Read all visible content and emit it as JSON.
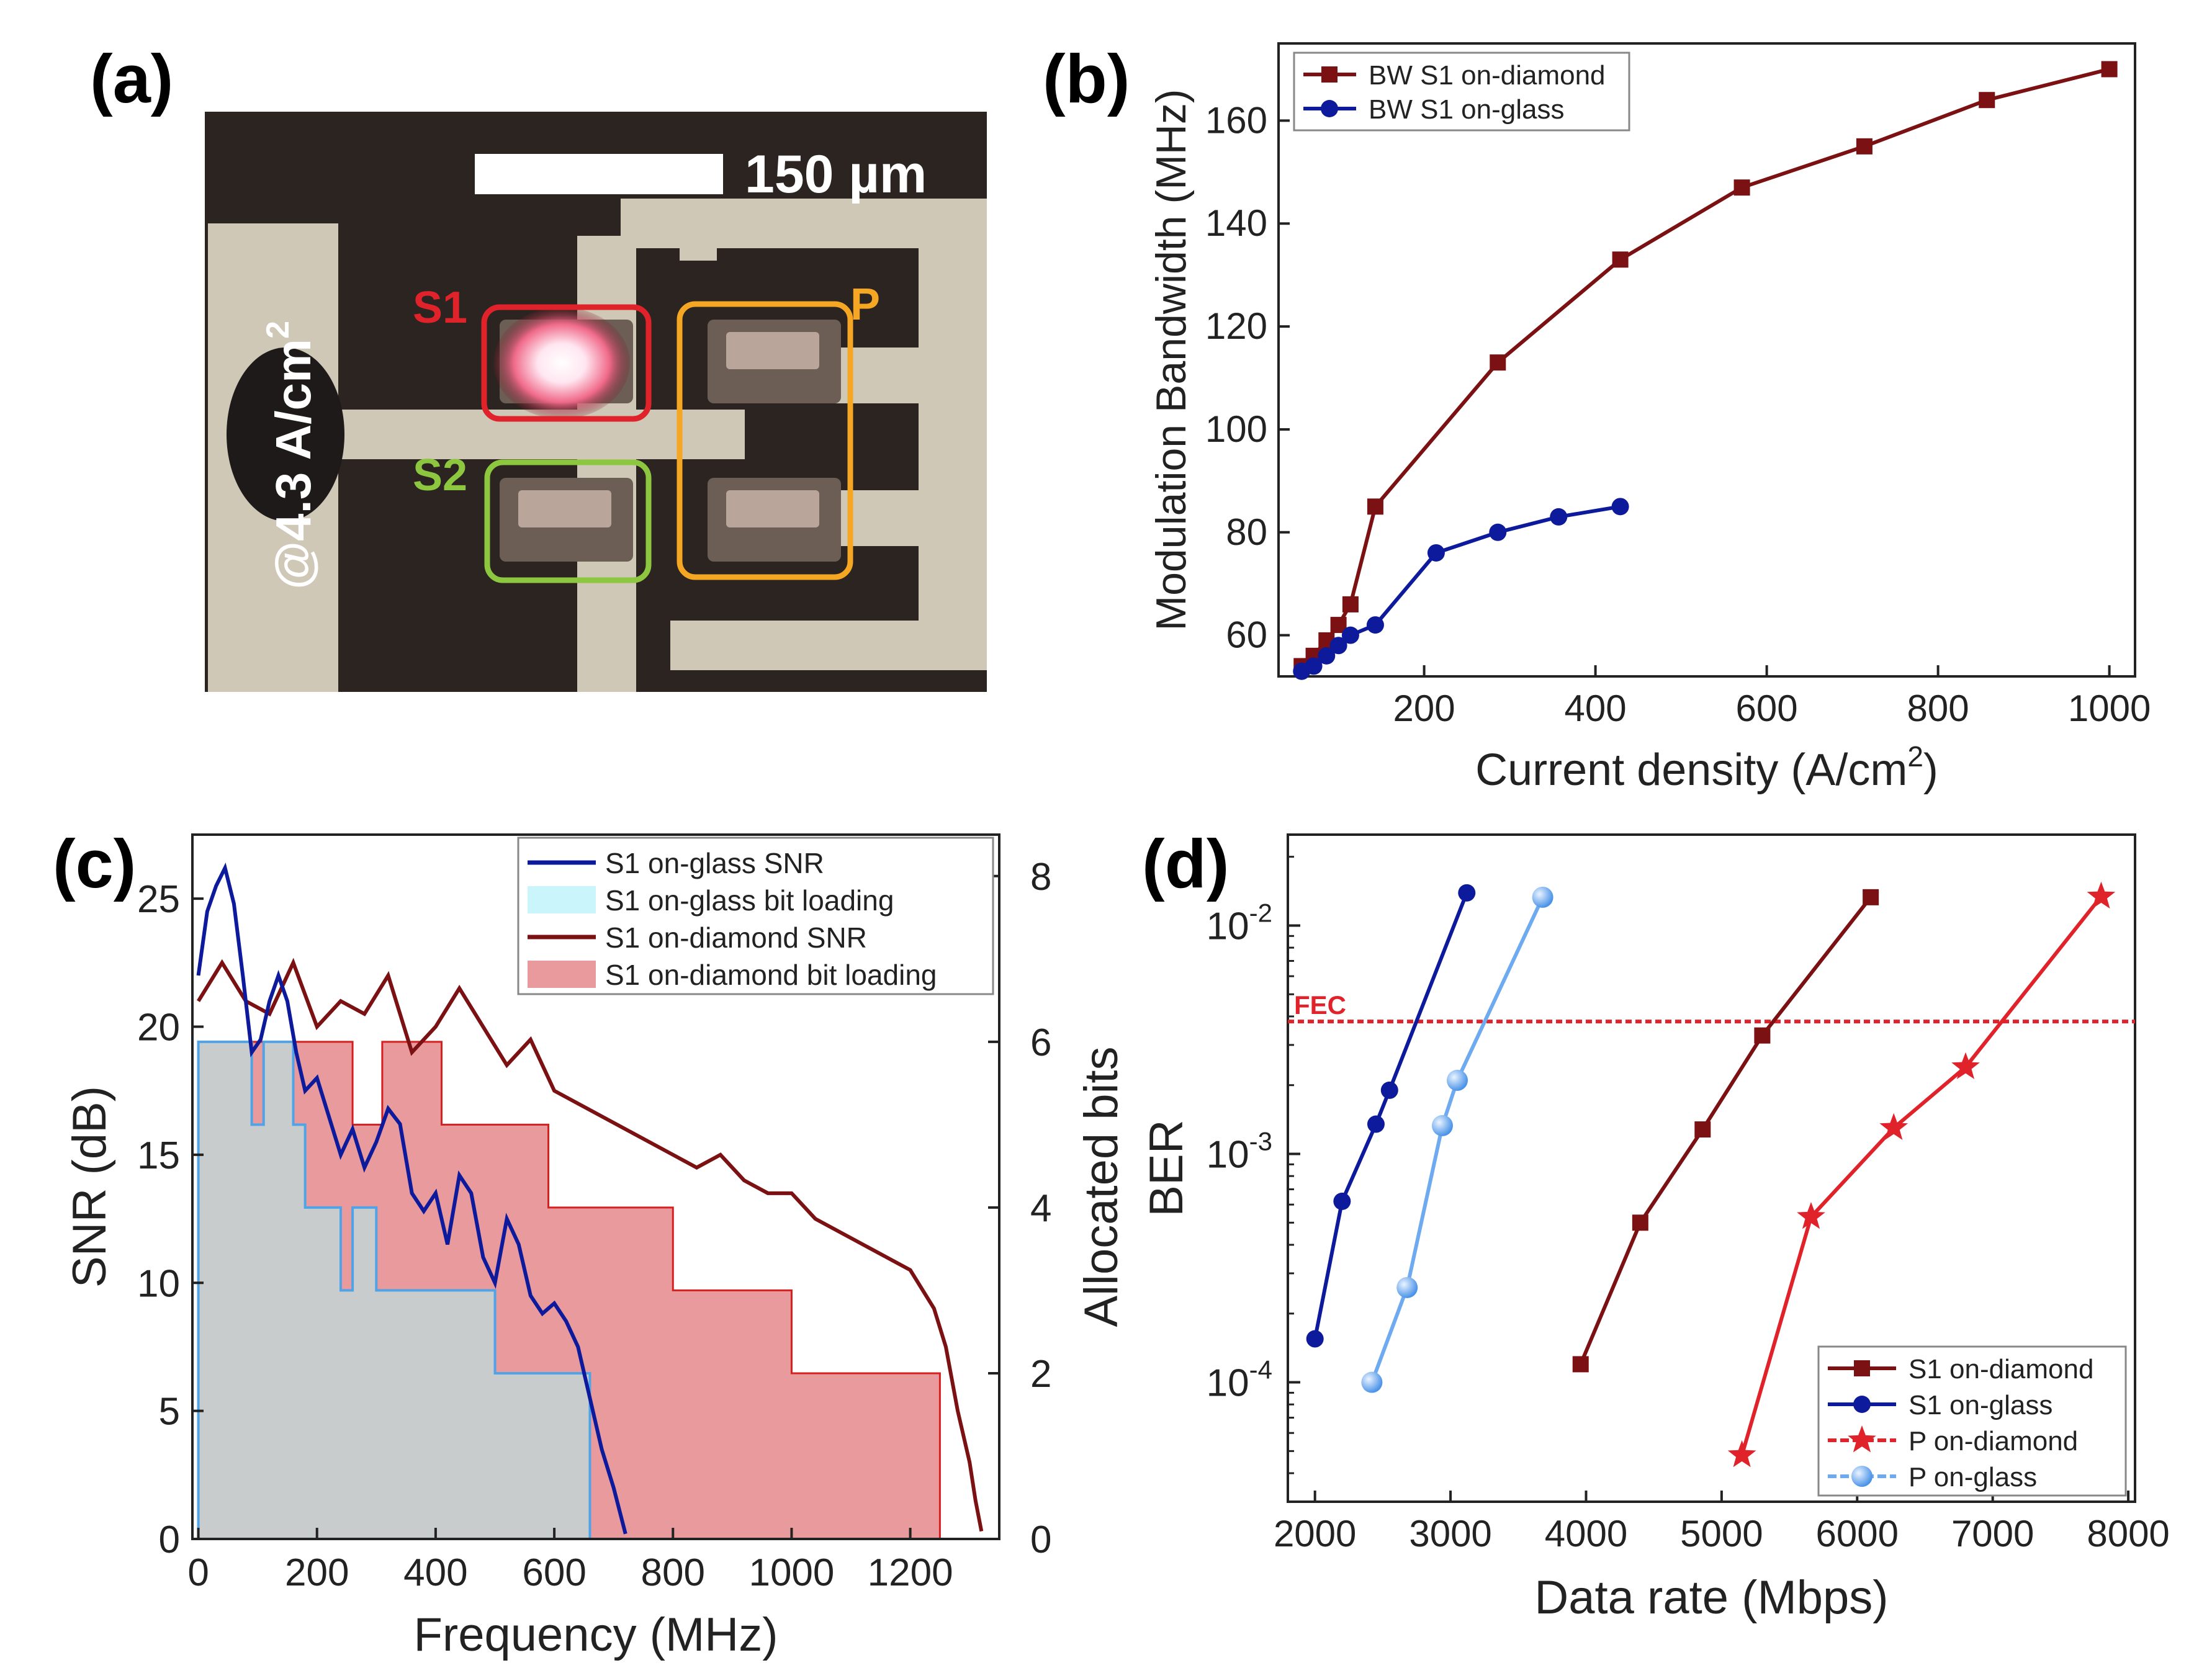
{
  "panels": {
    "a": {
      "label": "(a)"
    },
    "b": {
      "label": "(b)"
    },
    "c": {
      "label": "(c)"
    },
    "d": {
      "label": "(d)"
    }
  },
  "micrograph": {
    "scale_bar_label": "150 µm",
    "current_label_main": "@4.3 A/cm",
    "current_label_sup": "2",
    "boxes": [
      {
        "label": "S1",
        "color": "#e0232a"
      },
      {
        "label": "S2",
        "color": "#8dc63f"
      },
      {
        "label": "P",
        "color": "#f5a623"
      }
    ]
  },
  "chart_data": [
    {
      "panel": "b",
      "type": "line",
      "xlabel": "Current density (A/cm",
      "xlabel_sup": "2",
      "xlabel_end": ")",
      "ylabel": "Modulation Bandwidth (MHz)",
      "xlim": [
        30,
        1030
      ],
      "ylim": [
        52,
        175
      ],
      "xticks": [
        200,
        400,
        600,
        800,
        1000
      ],
      "yticks": [
        60,
        80,
        100,
        120,
        140,
        160
      ],
      "legend_position": "top-left",
      "series": [
        {
          "name": "BW S1 on-diamond",
          "color": "#7b1113",
          "marker": "square",
          "x": [
            57,
            71,
            86,
            100,
            114,
            143,
            286,
            429,
            571,
            714,
            857,
            1000
          ],
          "y": [
            54,
            56,
            59,
            62,
            66,
            85,
            113,
            133,
            147,
            155,
            164,
            170
          ]
        },
        {
          "name": "BW S1 on-glass",
          "color": "#0d1a9b",
          "marker": "circle",
          "x": [
            57,
            71,
            86,
            100,
            114,
            143,
            214,
            286,
            357,
            429
          ],
          "y": [
            53,
            54,
            56,
            58,
            60,
            62,
            76,
            80,
            83,
            85
          ]
        }
      ]
    },
    {
      "panel": "c",
      "type": "area",
      "xlabel": "Frequency (MHz)",
      "ylabel": "SNR (dB)",
      "ylabel_right": "Allocated bits",
      "xlim": [
        -10,
        1350
      ],
      "ylim": [
        0,
        27.5
      ],
      "ylim_right": [
        0,
        8.5
      ],
      "xticks": [
        0,
        200,
        400,
        600,
        800,
        1000,
        1200
      ],
      "yticks": [
        0,
        5,
        10,
        15,
        20,
        25
      ],
      "yticks_right": [
        0,
        2,
        4,
        6,
        8
      ],
      "legend_position": "top-right",
      "series": [
        {
          "name": "S1 on-glass SNR",
          "color": "#0d1a9b",
          "kind": "line",
          "x": [
            0,
            15,
            30,
            45,
            60,
            75,
            90,
            105,
            120,
            135,
            150,
            165,
            180,
            200,
            220,
            240,
            260,
            280,
            300,
            320,
            340,
            360,
            380,
            400,
            420,
            440,
            460,
            480,
            500,
            520,
            540,
            560,
            580,
            600,
            620,
            640,
            660,
            680,
            700,
            720
          ],
          "y": [
            22,
            24.5,
            25.5,
            26.2,
            24.8,
            22,
            19,
            19.5,
            21,
            22,
            21,
            19,
            17.5,
            18,
            16.5,
            15,
            16,
            14.5,
            15.5,
            16.8,
            16.2,
            13.5,
            12.8,
            13.5,
            11.5,
            14.2,
            13.5,
            11,
            10,
            12.5,
            11.5,
            9.5,
            8.8,
            9.2,
            8.5,
            7.5,
            5.5,
            3.5,
            2,
            0.2
          ]
        },
        {
          "name": "S1 on-glass bit loading",
          "color": "#c9f5fb",
          "kind": "step",
          "x": [
            0,
            90,
            110,
            160,
            180,
            240,
            260,
            300,
            340,
            360,
            390,
            500,
            580,
            660
          ],
          "y": [
            6,
            5,
            6,
            5,
            4,
            3,
            4,
            3,
            3,
            3,
            3,
            2,
            2,
            0
          ]
        },
        {
          "name": "S1 on-diamond SNR",
          "color": "#7b1113",
          "kind": "line",
          "x": [
            0,
            40,
            80,
            120,
            160,
            200,
            240,
            280,
            320,
            360,
            400,
            440,
            480,
            520,
            560,
            600,
            640,
            680,
            720,
            760,
            800,
            840,
            880,
            920,
            960,
            1000,
            1040,
            1080,
            1120,
            1160,
            1200,
            1240,
            1260,
            1280,
            1300,
            1310,
            1320
          ],
          "y": [
            21,
            22.5,
            21,
            20.5,
            22.5,
            20,
            21,
            20.5,
            22,
            19,
            20,
            21.5,
            20,
            18.5,
            19.5,
            17.5,
            17,
            16.5,
            16,
            15.5,
            15,
            14.5,
            15,
            14,
            13.5,
            13.5,
            12.5,
            12,
            11.5,
            11,
            10.5,
            9,
            7.5,
            5,
            3,
            1.5,
            0.3
          ]
        },
        {
          "name": "S1 on-diamond bit loading",
          "color": "#e89a9c",
          "kind": "step",
          "x": [
            0,
            150,
            230,
            260,
            310,
            410,
            520,
            590,
            800,
            1000,
            1250
          ],
          "y": [
            6,
            6,
            6,
            5,
            6,
            5,
            5,
            4,
            3,
            2,
            0
          ]
        }
      ]
    },
    {
      "panel": "d",
      "type": "line",
      "xlabel": "Data rate (Mbps)",
      "ylabel": "BER",
      "xlim": [
        1800,
        8050
      ],
      "ylim": [
        3e-05,
        0.025
      ],
      "yscale": "log",
      "xticks": [
        2000,
        3000,
        4000,
        5000,
        6000,
        7000,
        8000
      ],
      "ytick_labels": [
        {
          "base": "10",
          "exp": "-4",
          "value": 0.0001
        },
        {
          "base": "10",
          "exp": "-3",
          "value": 0.001
        },
        {
          "base": "10",
          "exp": "-2",
          "value": 0.01
        }
      ],
      "threshold": {
        "label": "FEC",
        "value": 0.0038,
        "color": "#e0232a"
      },
      "legend_position": "bottom-right",
      "series": [
        {
          "name": "S1 on-diamond",
          "color": "#7b1113",
          "marker": "square",
          "x": [
            3960,
            4400,
            4860,
            5300,
            6100
          ],
          "y": [
            0.00012,
            0.0005,
            0.00128,
            0.0033,
            0.0133
          ]
        },
        {
          "name": "S1 on-glass",
          "color": "#0d1a9b",
          "marker": "circle",
          "x": [
            2000,
            2200,
            2450,
            2550,
            3120
          ],
          "y": [
            0.000155,
            0.00062,
            0.00135,
            0.0019,
            0.0139
          ]
        },
        {
          "name": "P on-diamond",
          "color": "#e0232a",
          "marker": "star",
          "x": [
            5150,
            5660,
            6270,
            6800,
            7800
          ],
          "y": [
            4.8e-05,
            0.00053,
            0.0013,
            0.0024,
            0.0134
          ]
        },
        {
          "name": "P on-glass",
          "color": "#6eaaf0",
          "marker": "ball",
          "x": [
            2420,
            2680,
            2940,
            3050,
            3680
          ],
          "y": [
            0.0001,
            0.00026,
            0.00133,
            0.0021,
            0.0133
          ]
        }
      ]
    }
  ]
}
